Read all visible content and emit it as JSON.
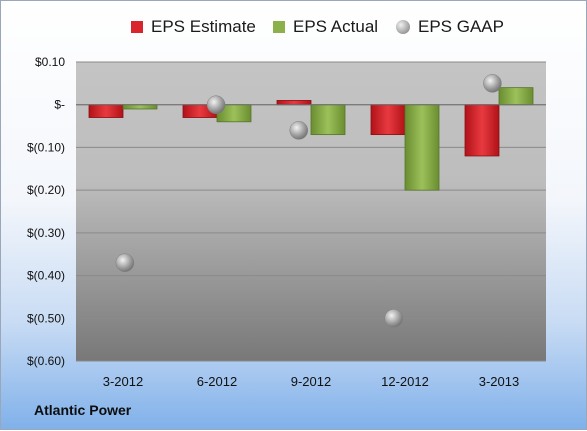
{
  "chart_data": {
    "type": "bar",
    "categories": [
      "3-2012",
      "6-2012",
      "9-2012",
      "12-2012",
      "3-2013"
    ],
    "series": [
      {
        "name": "EPS Estimate",
        "kind": "bar",
        "color": "#d9262c",
        "values": [
          -0.03,
          -0.03,
          0.01,
          -0.07,
          -0.12
        ]
      },
      {
        "name": "EPS Actual",
        "kind": "bar",
        "color": "#8cb04a",
        "values": [
          -0.01,
          -0.04,
          -0.07,
          -0.2,
          0.04
        ]
      },
      {
        "name": "EPS GAAP",
        "kind": "scatter",
        "color": "#a6a6a6",
        "values": [
          -0.37,
          0.0,
          -0.06,
          -0.5,
          0.05
        ]
      }
    ],
    "yticks": [
      0.1,
      0.0,
      -0.1,
      -0.2,
      -0.3,
      -0.4,
      -0.5,
      -0.6
    ],
    "ytick_labels": [
      "$0.10",
      "$-",
      "$(0.10)",
      "$(0.20)",
      "$(0.30)",
      "$(0.40)",
      "$(0.50)",
      "$(0.60)"
    ],
    "ylim": [
      -0.6,
      0.1
    ],
    "grid": true,
    "legend_position": "top"
  },
  "legend": {
    "estimate_label": "EPS Estimate",
    "actual_label": "EPS Actual",
    "gaap_label": "EPS GAAP"
  },
  "company_name": "Atlantic Power"
}
